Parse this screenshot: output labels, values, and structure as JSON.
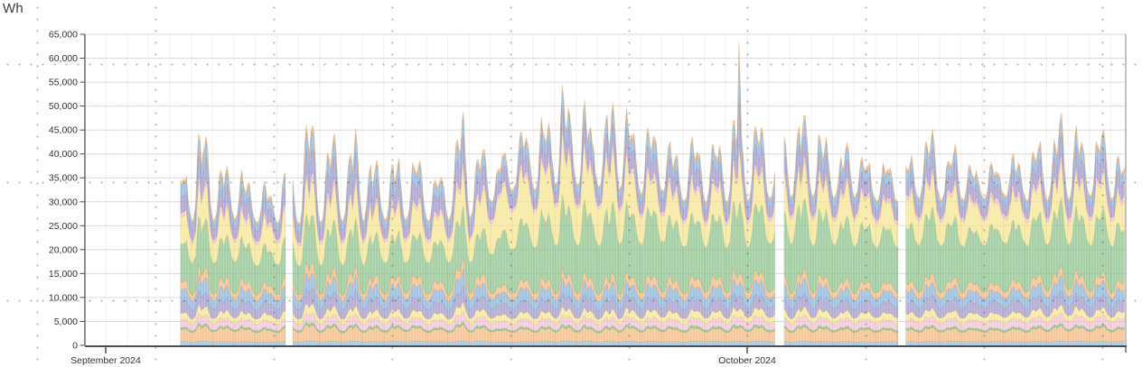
{
  "widget": {
    "unit_label": "Wh"
  },
  "chart_data": {
    "type": "area",
    "stacked": true,
    "title": "",
    "ylabel": "Wh",
    "xlabel": "",
    "legend_position": "none",
    "grid": {
      "horizontal": true,
      "vertical_day_lines": true
    },
    "ylim": [
      0,
      65000
    ],
    "y_tick_step": 5000,
    "y_tick_labels": [
      "0",
      "5,000",
      "10,000",
      "15,000",
      "20,000",
      "25,000",
      "30,000",
      "35,000",
      "40,000",
      "45,000",
      "50,000",
      "55,000",
      "60,000",
      "65,000"
    ],
    "x_tick_labels": [
      "September 2024",
      "October 2024"
    ],
    "x_tick_days": [
      0,
      30
    ],
    "plot_day_range": [
      -0.97,
      47.7
    ],
    "data_day_ranges": [
      [
        3.5,
        8.45
      ],
      [
        8.75,
        31.31
      ],
      [
        31.73,
        37.08
      ],
      [
        37.42,
        47.7
      ]
    ],
    "night_baseline_total_wh": 26000,
    "daily_peak_totals_wh": {
      "start_day": 3,
      "values": [
        38000,
        42000,
        39000,
        34000,
        33000,
        36000,
        46000,
        43000,
        41000,
        37000,
        39000,
        36000,
        37000,
        43000,
        41000,
        40000,
        45000,
        44000,
        51000,
        47000,
        48000,
        45000,
        42000,
        41000,
        43000,
        41000,
        45000,
        46000,
        44000,
        47000,
        43000,
        40000,
        38000,
        40000,
        39000,
        42000,
        40000,
        38000,
        36000,
        38000,
        42000,
        44000,
        44000,
        41000,
        38000
      ]
    },
    "peak_spike": {
      "day": 29.62,
      "total_wh": 61500,
      "width_days": 0.045,
      "extra_by_series_index": {
        "8": 2000,
        "9": 4500,
        "11": 6500,
        "12": 5500,
        "13": 2500
      }
    },
    "series": [
      {
        "name": "band-01-blue",
        "color": "#a6c9e2",
        "stroke": "#7fa8c6",
        "volatility": 0.3,
        "envelope": [
          [
            0,
            780
          ],
          [
            48,
            820
          ]
        ]
      },
      {
        "name": "band-02-orange",
        "color": "#f5c493",
        "stroke": "#d4a371",
        "volatility": 0.5,
        "envelope": [
          [
            0,
            2250
          ],
          [
            48,
            2350
          ]
        ]
      },
      {
        "name": "band-03-green",
        "color": "#8cc88c",
        "stroke": "#6fae6f",
        "volatility": 0.3,
        "envelope": [
          [
            0,
            380
          ],
          [
            48,
            420
          ]
        ]
      },
      {
        "name": "band-04-pink",
        "color": "#f2cbd8",
        "stroke": "#d9a8bd",
        "volatility": 0.4,
        "envelope": [
          [
            0,
            1450
          ],
          [
            20,
            1500
          ],
          [
            48,
            1700
          ]
        ]
      },
      {
        "name": "band-05-yellow",
        "color": "#f8e8a0",
        "stroke": "#dcc773",
        "volatility": 0.55,
        "envelope": [
          [
            0,
            1250
          ],
          [
            48,
            1350
          ]
        ]
      },
      {
        "name": "band-06-purple",
        "color": "#b3a9d2",
        "stroke": "#968cba",
        "volatility": 0.5,
        "envelope": [
          [
            0,
            2050
          ],
          [
            48,
            2150
          ]
        ]
      },
      {
        "name": "band-07-blue",
        "color": "#9cc1df",
        "stroke": "#7ba3c7",
        "volatility": 0.6,
        "envelope": [
          [
            0,
            2150
          ],
          [
            48,
            2250
          ]
        ]
      },
      {
        "name": "band-08-orange",
        "color": "#f5c493",
        "stroke": "#d4a371",
        "volatility": 0.55,
        "envelope": [
          [
            0,
            1450
          ],
          [
            48,
            1550
          ]
        ]
      },
      {
        "name": "band-09-green",
        "color": "#a0cca0",
        "stroke": "#7fb07f",
        "volatility": 0.5,
        "envelope": [
          [
            0,
            6900
          ],
          [
            17.5,
            7100
          ],
          [
            18.6,
            10800
          ],
          [
            30,
            11100
          ],
          [
            48,
            10400
          ]
        ]
      },
      {
        "name": "band-10-yellow",
        "color": "#f8e9a2",
        "stroke": "#dcc873",
        "volatility": 0.6,
        "envelope": [
          [
            0,
            4700
          ],
          [
            17,
            5100
          ],
          [
            18.6,
            8600
          ],
          [
            23.5,
            8400
          ],
          [
            25.5,
            5700
          ],
          [
            48,
            5600
          ]
        ]
      },
      {
        "name": "band-11-pink",
        "color": "#f2cbd8",
        "stroke": "#d9a8bd",
        "volatility": 0.5,
        "envelope": [
          [
            0,
            750
          ],
          [
            48,
            900
          ]
        ]
      },
      {
        "name": "band-12-purple",
        "color": "#b0a6d1",
        "stroke": "#968cba",
        "volatility": 1.0,
        "envelope": [
          [
            0,
            2400
          ],
          [
            48,
            2500
          ]
        ]
      },
      {
        "name": "band-13-blue",
        "color": "#9cc1df",
        "stroke": "#7ba3c7",
        "volatility": 1.15,
        "envelope": [
          [
            0,
            1700
          ],
          [
            48,
            1800
          ]
        ]
      },
      {
        "name": "band-14-orange",
        "color": "#f4c28e",
        "stroke": "#d4a371",
        "volatility": 1.3,
        "envelope": [
          [
            0,
            480
          ],
          [
            48,
            520
          ]
        ]
      }
    ]
  }
}
